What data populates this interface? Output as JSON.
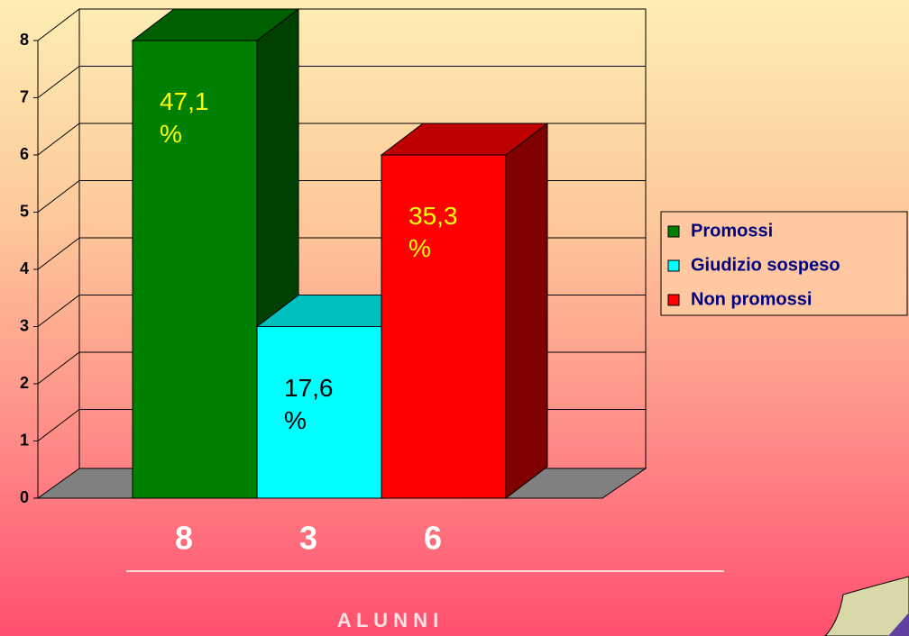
{
  "chart_data": {
    "type": "bar3d",
    "categories": [
      "8",
      "3",
      "6"
    ],
    "series": [
      {
        "name": "Promossi",
        "color": "#008000",
        "values": [
          8,
          null,
          null
        ]
      },
      {
        "name": "Giudizio sospeso",
        "color": "#00ffff",
        "values": [
          null,
          3,
          null
        ]
      },
      {
        "name": "Non promossi",
        "color": "#ff0000",
        "values": [
          null,
          null,
          6
        ]
      }
    ],
    "annotations": [
      "47,1 %",
      "17,6 %",
      "35,3 %"
    ],
    "annotation_colors": [
      "#ffff00",
      "#000000",
      "#ffff00"
    ],
    "x_label": "A L U N N I",
    "ylim": [
      0,
      8
    ],
    "yticks": [
      0,
      1,
      2,
      3,
      4,
      5,
      6,
      7,
      8
    ],
    "grid": true
  }
}
